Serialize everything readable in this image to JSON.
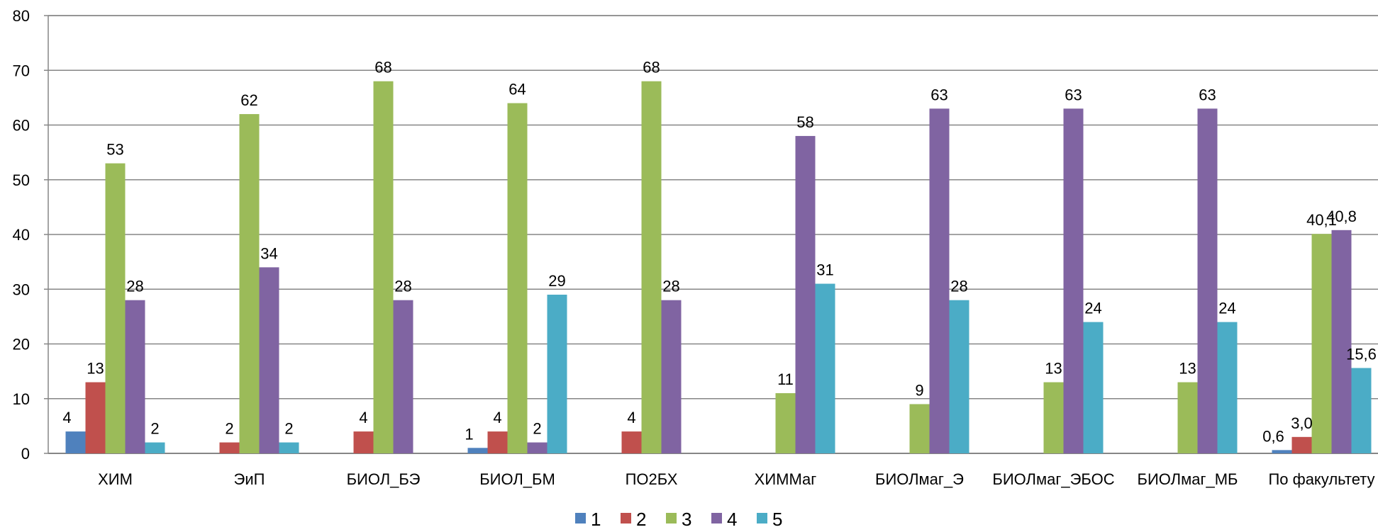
{
  "chart_data": {
    "type": "bar",
    "categories": [
      "ХИМ",
      "ЭиП",
      "БИОЛ_БЭ",
      "БИОЛ_БМ",
      "ПО2БХ",
      "ХИММаг",
      "БИОЛмаг_Э",
      "БИОЛмаг_ЭБОС",
      "БИОЛмаг_МБ",
      "По факультету"
    ],
    "series": [
      {
        "name": "1",
        "color": "#4F81BD",
        "values": [
          4,
          null,
          null,
          1,
          null,
          null,
          null,
          null,
          null,
          0.6
        ],
        "labels": [
          "4",
          "",
          "",
          "1",
          "",
          "",
          "",
          "",
          "",
          "0,6"
        ]
      },
      {
        "name": "2",
        "color": "#C0504D",
        "values": [
          13,
          2,
          4,
          4,
          4,
          null,
          null,
          null,
          null,
          3.0
        ],
        "labels": [
          "13",
          "2",
          "4",
          "4",
          "4",
          "",
          "",
          "",
          "",
          "3,0"
        ]
      },
      {
        "name": "3",
        "color": "#9BBB59",
        "values": [
          53,
          62,
          68,
          64,
          68,
          11,
          9,
          13,
          13,
          40.1
        ],
        "labels": [
          "53",
          "62",
          "68",
          "64",
          "68",
          "11",
          "9",
          "13",
          "13",
          "40,1"
        ]
      },
      {
        "name": "4",
        "color": "#8064A2",
        "values": [
          28,
          34,
          28,
          2,
          28,
          58,
          63,
          63,
          63,
          40.8
        ],
        "labels": [
          "28",
          "34",
          "28",
          "2",
          "28",
          "58",
          "63",
          "63",
          "63",
          "40,8"
        ]
      },
      {
        "name": "5",
        "color": "#4BACC6",
        "values": [
          2,
          2,
          null,
          29,
          null,
          31,
          28,
          24,
          24,
          15.6
        ],
        "labels": [
          "2",
          "2",
          "",
          "29",
          "",
          "31",
          "28",
          "24",
          "24",
          "15,6"
        ]
      }
    ],
    "yticks": [
      "0",
      "10",
      "20",
      "30",
      "40",
      "50",
      "60",
      "70",
      "80"
    ],
    "ylim": [
      0,
      80
    ],
    "grid": true,
    "legend_position": "bottom"
  }
}
